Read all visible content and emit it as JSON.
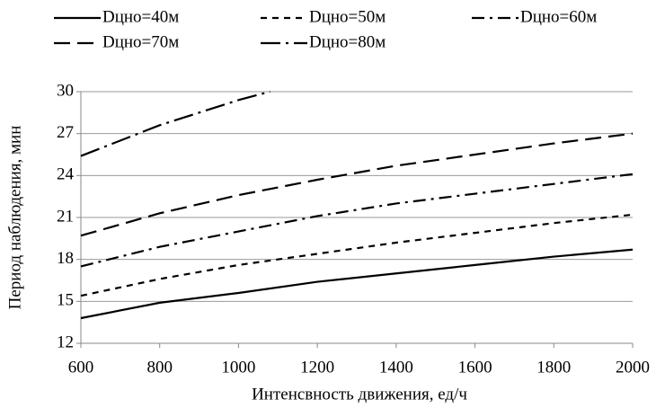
{
  "chart_data": {
    "type": "line",
    "x_label": "Интенсвность движения, ед/ч",
    "y_label": "Период наблюдения, мин",
    "xlim": [
      600,
      2000
    ],
    "xticks": [
      600,
      800,
      1000,
      1200,
      1400,
      1600,
      1800,
      2000
    ],
    "ylim": [
      12,
      30
    ],
    "yticks": [
      12,
      15,
      18,
      21,
      24,
      27,
      30
    ],
    "grid": true,
    "legend": "top",
    "series": [
      {
        "name": "Dцно=40м",
        "color": "#000000",
        "dash": "none",
        "x": [
          600,
          800,
          1000,
          1200,
          1400,
          1600,
          1800,
          2000
        ],
        "values": [
          13.8,
          14.9,
          15.6,
          16.4,
          17.0,
          17.6,
          18.2,
          18.7
        ]
      },
      {
        "name": "Dцно=50м",
        "color": "#000000",
        "dash": "7 6",
        "x": [
          600,
          800,
          1000,
          1200,
          1400,
          1600,
          1800,
          2000
        ],
        "values": [
          15.4,
          16.6,
          17.6,
          18.4,
          19.2,
          19.9,
          20.6,
          21.2
        ]
      },
      {
        "name": "Dцно=60м",
        "color": "#000000",
        "dash": "14 6 3 6",
        "x": [
          600,
          800,
          1000,
          1200,
          1400,
          1600,
          1800,
          2000
        ],
        "values": [
          17.5,
          18.9,
          20.0,
          21.1,
          22.0,
          22.7,
          23.4,
          24.1
        ]
      },
      {
        "name": "Dцно=70м",
        "color": "#000000",
        "dash": "18 8",
        "x": [
          600,
          800,
          1000,
          1200,
          1400,
          1600,
          1800,
          2000
        ],
        "values": [
          19.7,
          21.3,
          22.6,
          23.7,
          24.7,
          25.5,
          26.3,
          27.0
        ]
      },
      {
        "name": "Dцно=80м",
        "color": "#000000",
        "dash": "22 6 3 6",
        "x": [
          600,
          800,
          1000,
          1080
        ],
        "values": [
          25.4,
          27.6,
          29.4,
          30
        ]
      }
    ]
  }
}
